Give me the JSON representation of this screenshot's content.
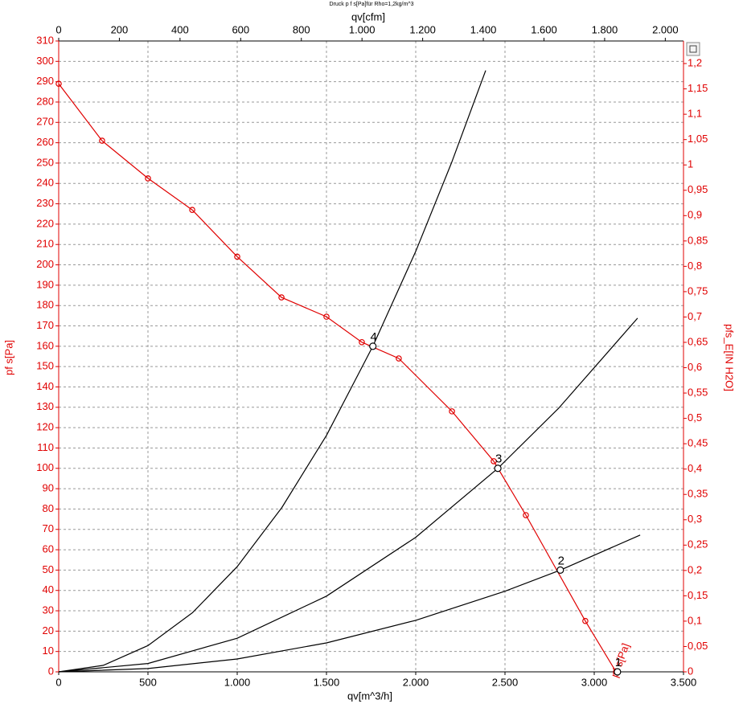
{
  "chart_data": {
    "type": "line",
    "title": "Druck p f s[Pa]für Rho=1,2kg/m^3",
    "xlabel": "qv[m^3/h]",
    "x2label": "qv[cfm]",
    "ylabel": "pf s[Pa]",
    "y2label": "pfs_E[IN H2O]",
    "xlim": [
      0,
      3500
    ],
    "xticks": [
      0,
      500,
      {
        "value": 1000,
        "label": "1.000"
      },
      {
        "value": 1500,
        "label": "1.500"
      },
      {
        "value": 2000,
        "label": "2.000"
      },
      {
        "value": 2500,
        "label": "2.500"
      },
      {
        "value": 3000,
        "label": "3.000"
      },
      {
        "value": 3500,
        "label": "3.500"
      }
    ],
    "x2lim": [
      0,
      2060
    ],
    "x2ticks": [
      0,
      200,
      400,
      600,
      800,
      {
        "value": 1000,
        "label": "1.000"
      },
      {
        "value": 1200,
        "label": "1.200"
      },
      {
        "value": 1400,
        "label": "1.400"
      },
      {
        "value": 1600,
        "label": "1.600"
      },
      {
        "value": 1800,
        "label": "1.800"
      },
      {
        "value": 2000,
        "label": "2.000"
      }
    ],
    "ylim": [
      0,
      310
    ],
    "yticks": [
      0,
      10,
      20,
      30,
      40,
      50,
      60,
      70,
      80,
      90,
      100,
      110,
      120,
      130,
      140,
      150,
      160,
      170,
      180,
      190,
      200,
      210,
      220,
      230,
      240,
      250,
      260,
      270,
      280,
      290,
      300,
      310
    ],
    "y2lim": [
      0,
      1.2445
    ],
    "y2ticks": [
      0,
      {
        "value": 0.05,
        "label": "0,05"
      },
      {
        "value": 0.1,
        "label": "0,1"
      },
      {
        "value": 0.15,
        "label": "0,15"
      },
      {
        "value": 0.2,
        "label": "0,2"
      },
      {
        "value": 0.25,
        "label": "0,25"
      },
      {
        "value": 0.3,
        "label": "0,3"
      },
      {
        "value": 0.35,
        "label": "0,35"
      },
      {
        "value": 0.4,
        "label": "0,4"
      },
      {
        "value": 0.45,
        "label": "0,45"
      },
      {
        "value": 0.5,
        "label": "0,5"
      },
      {
        "value": 0.55,
        "label": "0,55"
      },
      {
        "value": 0.6,
        "label": "0,6"
      },
      {
        "value": 0.65,
        "label": "0,65"
      },
      {
        "value": 0.7,
        "label": "0,7"
      },
      {
        "value": 0.75,
        "label": "0,75"
      },
      {
        "value": 0.8,
        "label": "0,8"
      },
      {
        "value": 0.85,
        "label": "0,85"
      },
      {
        "value": 0.9,
        "label": "0,9"
      },
      {
        "value": 0.95,
        "label": "0,95"
      },
      {
        "value": 1,
        "label": "1"
      },
      {
        "value": 1.05,
        "label": "1,05"
      },
      {
        "value": 1.1,
        "label": "1,1"
      },
      {
        "value": 1.15,
        "label": "1,15"
      },
      {
        "value": 1.2,
        "label": "1,2"
      }
    ],
    "grid": true,
    "axis_color": "#e00000",
    "series": [
      {
        "name": "pf s[Pa]",
        "color": "#e00000",
        "markers": true,
        "x": [
          0,
          243,
          500,
          748,
          1000,
          1248,
          1500,
          1698,
          1905,
          2203,
          2437,
          2617,
          2950,
          3122
        ],
        "values": [
          289,
          261,
          242.5,
          227,
          204,
          184,
          174.5,
          162,
          154,
          128,
          103.5,
          77,
          25,
          0
        ]
      },
      {
        "color": "#000000",
        "markers": false,
        "x": [
          0,
          250,
          500,
          750,
          1000,
          1250,
          1500,
          1760,
          2000,
          2200,
          2392
        ],
        "values": [
          0,
          3.2,
          12.9,
          29.1,
          51.7,
          80.7,
          116.2,
          160,
          206.6,
          250,
          295.5
        ]
      },
      {
        "color": "#000000",
        "markers": false,
        "x": [
          0,
          500,
          1000,
          1500,
          2000,
          2460,
          2800,
          3243
        ],
        "values": [
          0,
          4.1,
          16.5,
          37.2,
          66.1,
          100,
          129.5,
          173.8
        ]
      },
      {
        "color": "#000000",
        "markers": false,
        "x": [
          0,
          500,
          1000,
          1500,
          2000,
          2500,
          2810,
          3257
        ],
        "values": [
          0,
          1.6,
          6.3,
          14.2,
          25.3,
          39.6,
          50,
          67.2
        ]
      }
    ],
    "operating_points": {
      "labels": [
        "1",
        "2",
        "3",
        "4"
      ],
      "x": [
        3130,
        2810,
        2460,
        1760
      ],
      "values": [
        0,
        50,
        100,
        160
      ]
    }
  }
}
